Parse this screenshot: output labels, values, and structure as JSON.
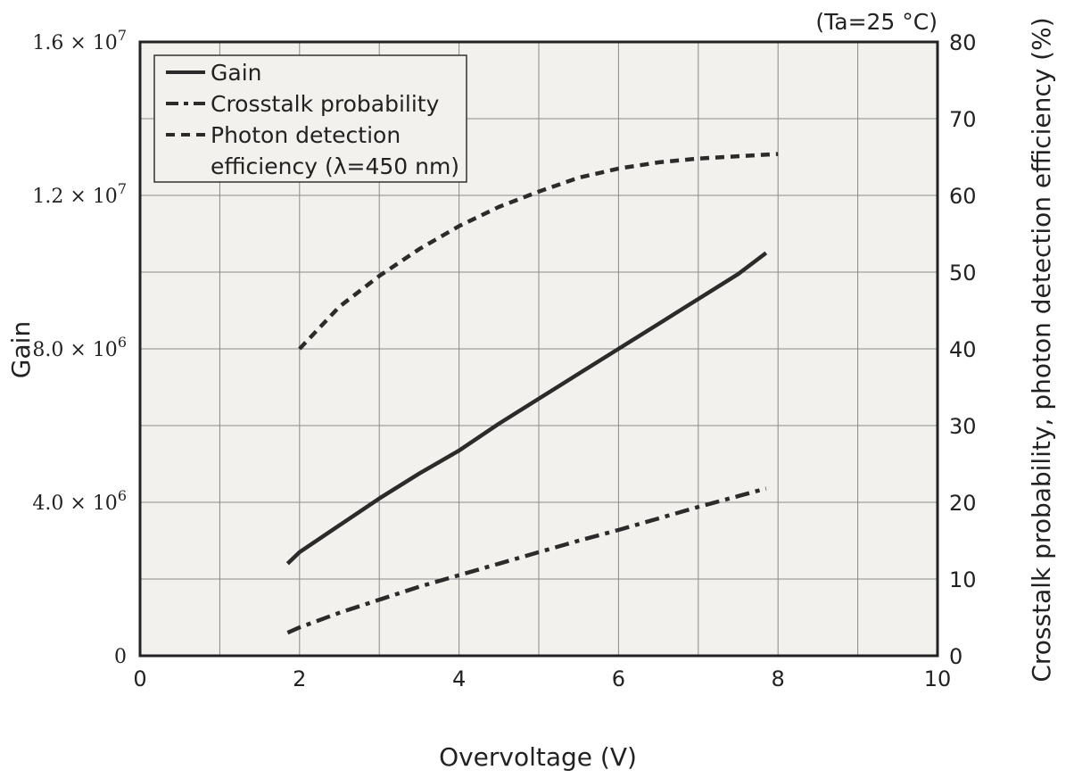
{
  "chart_data": {
    "type": "line",
    "note": "(Ta=25 °C)",
    "xlabel": "Overvoltage (V)",
    "ylabel_left": "Gain",
    "ylabel_right": "Crosstalk probability, photon detection efficiency (%)",
    "xlim": [
      0,
      10
    ],
    "ylim_left": [
      0,
      16000000
    ],
    "ylim_right": [
      0,
      80
    ],
    "grid": true,
    "legend_placement": "top-left",
    "x_ticks": [
      "0",
      "2",
      "4",
      "6",
      "8",
      "10"
    ],
    "left_ticks": [
      {
        "mantissa": "0",
        "exp": ""
      },
      {
        "mantissa": "4.0 × 10",
        "exp": "6"
      },
      {
        "mantissa": "8.0 × 10",
        "exp": "6"
      },
      {
        "mantissa": "1.2 × 10",
        "exp": "7"
      },
      {
        "mantissa": "1.6 × 10",
        "exp": "7"
      }
    ],
    "right_ticks": [
      "0",
      "10",
      "20",
      "30",
      "40",
      "50",
      "60",
      "70",
      "80"
    ],
    "legend": {
      "gain": "Gain",
      "crosstalk": "Crosstalk probability",
      "pde_line1": "Photon detection",
      "pde_line2": "efficiency (λ=450 nm)"
    },
    "series": [
      {
        "name": "Gain",
        "axis": "left",
        "style": "solid",
        "x": [
          1.85,
          2.0,
          2.5,
          3.0,
          3.5,
          4.0,
          4.5,
          5.0,
          5.5,
          6.0,
          6.5,
          7.0,
          7.5,
          7.85
        ],
        "y": [
          2400000,
          2700000,
          3400000,
          4100000,
          4750000,
          5350000,
          6050000,
          6700000,
          7350000,
          8000000,
          8650000,
          9300000,
          9950000,
          10500000
        ]
      },
      {
        "name": "Crosstalk probability",
        "axis": "right",
        "style": "dash-dot",
        "x": [
          1.85,
          2.0,
          2.5,
          3.0,
          3.5,
          4.0,
          4.5,
          5.0,
          5.5,
          6.0,
          6.5,
          7.0,
          7.5,
          7.85
        ],
        "y": [
          3.0,
          3.7,
          5.6,
          7.3,
          9.0,
          10.5,
          12.0,
          13.5,
          15.0,
          16.4,
          17.9,
          19.4,
          20.8,
          21.8
        ]
      },
      {
        "name": "Photon detection efficiency (λ=450 nm)",
        "axis": "right",
        "style": "dashed",
        "x": [
          2.0,
          2.5,
          3.0,
          3.5,
          4.0,
          4.5,
          5.0,
          5.5,
          6.0,
          6.5,
          7.0,
          7.5,
          8.0
        ],
        "y": [
          40.0,
          45.5,
          49.5,
          53.0,
          56.0,
          58.5,
          60.5,
          62.3,
          63.5,
          64.3,
          64.8,
          65.1,
          65.4
        ]
      }
    ]
  }
}
